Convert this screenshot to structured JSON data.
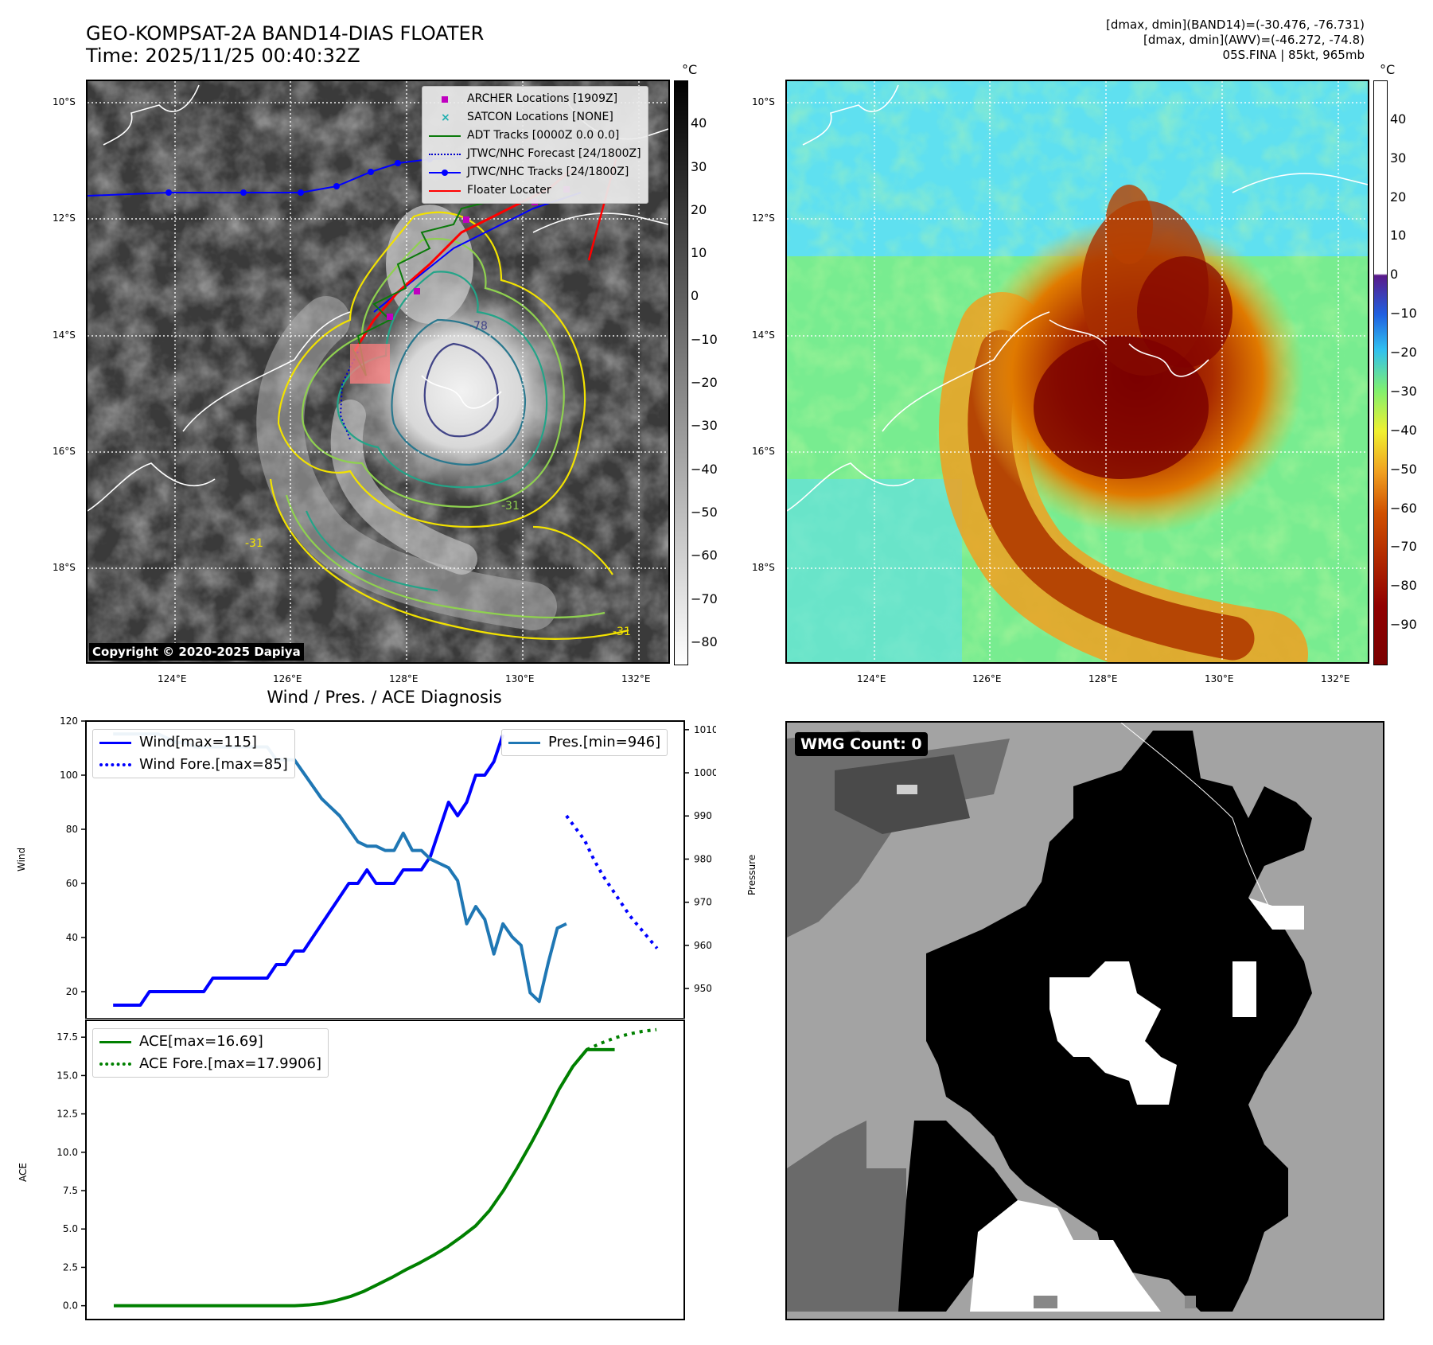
{
  "title": {
    "line1": "GEO-KOMPSAT-2A BAND14-DIAS FLOATER",
    "line2": "Time: 2025/11/25 00:40:32Z"
  },
  "info": {
    "line1": "[dmax, dmin](BAND14)=(-30.476, -76.731)",
    "line2": "[dmax, dmin](AWV)=(-46.272, -74.8)",
    "line3": "05S.FINA | 85kt, 965mb"
  },
  "map": {
    "lat_labels": [
      "10°S",
      "12°S",
      "14°S",
      "16°S",
      "18°S"
    ],
    "lon_labels": [
      "124°E",
      "126°E",
      "128°E",
      "130°E",
      "132°E"
    ],
    "copyright": "Copyright © 2020-2025 Dapiya",
    "contour_labels": [
      "-31",
      "-31",
      "-31",
      "-78"
    ]
  },
  "legend_map": {
    "items": [
      {
        "label": "ARCHER Locations [1909Z]",
        "symbol": "square",
        "color": "#c000c0"
      },
      {
        "label": "SATCON Locations [NONE]",
        "symbol": "x",
        "color": "#20b0b0"
      },
      {
        "label": "ADT Tracks [0000Z 0.0 0.0]",
        "symbol": "line",
        "color": "#0b7a0b"
      },
      {
        "label": "JTWC/NHC Forecast [24/1800Z]",
        "symbol": "dotted",
        "color": "#0000cc"
      },
      {
        "label": "JTWC/NHC Tracks [24/1800Z]",
        "symbol": "line-dot",
        "color": "#0000ff"
      },
      {
        "label": "Floater Locater",
        "symbol": "line",
        "color": "#ff0000"
      }
    ]
  },
  "colorbar_ir": {
    "unit": "°C",
    "ticks": [
      "40",
      "30",
      "20",
      "10",
      "0",
      "−10",
      "−20",
      "−30",
      "−40",
      "−50",
      "−60",
      "−70",
      "−80"
    ],
    "range": [
      -85,
      50
    ]
  },
  "colorbar_wv": {
    "unit": "°C",
    "ticks": [
      "40",
      "30",
      "20",
      "10",
      "0",
      "−10",
      "−20",
      "−30",
      "−40",
      "−50",
      "−60",
      "−70",
      "−80",
      "−90"
    ],
    "range": [
      -100,
      50
    ]
  },
  "wmg": {
    "label": "WMG Count: 0"
  },
  "diag": {
    "title": "Wind / Pres. / ACE Diagnosis",
    "wind_axis_label": "Wind",
    "pressure_axis_label": "Pressure",
    "ace_axis_label": "ACE",
    "legend_wind": "Wind[max=115]",
    "legend_wind_fore": "Wind Fore.[max=85]",
    "legend_pres": "Pres.[min=946]",
    "legend_ace": "ACE[max=16.69]",
    "legend_ace_fore": "ACE Fore.[max=17.9906]"
  },
  "chart_data": [
    {
      "type": "line",
      "title": "Wind / Pres. / ACE Diagnosis",
      "ylabel": "Wind",
      "ylim": [
        10,
        120
      ],
      "yticks": [
        20,
        40,
        60,
        80,
        100,
        120
      ],
      "y2label": "Pressure",
      "y2lim": [
        943,
        1012
      ],
      "y2ticks": [
        950,
        960,
        970,
        980,
        990,
        1000,
        1010
      ],
      "series": [
        {
          "name": "Wind[max=115]",
          "axis": "left",
          "color": "#0000ff",
          "style": "solid",
          "x": [
            0,
            1,
            2,
            3,
            4,
            5,
            6,
            7,
            8,
            9,
            10,
            11,
            12,
            13,
            14,
            15,
            16,
            17,
            18,
            19,
            20,
            21,
            22,
            23,
            24,
            25,
            26,
            27,
            28,
            29,
            30,
            31,
            32,
            33,
            34,
            35,
            36,
            37,
            38,
            39,
            40,
            41,
            42,
            43
          ],
          "values": [
            15,
            15,
            15,
            15,
            20,
            20,
            20,
            20,
            20,
            20,
            20,
            25,
            25,
            25,
            25,
            25,
            25,
            25,
            30,
            30,
            35,
            35,
            40,
            45,
            50,
            55,
            60,
            60,
            65,
            60,
            60,
            60,
            65,
            65,
            65,
            70,
            80,
            90,
            85,
            90,
            100,
            100,
            105,
            115
          ]
        },
        {
          "name": "Wind Fore.[max=85]",
          "axis": "left",
          "color": "#0000ff",
          "style": "dotted",
          "x": [
            50,
            52,
            53,
            54,
            55,
            56,
            57,
            58,
            59,
            60
          ],
          "values": [
            85,
            76,
            69,
            63,
            58,
            53,
            48,
            44,
            40,
            36
          ]
        },
        {
          "name": "Pres.[min=946]",
          "axis": "right",
          "color": "#1f77b4",
          "style": "solid",
          "x": [
            0,
            1,
            2,
            3,
            4,
            5,
            6,
            7,
            8,
            9,
            10,
            11,
            12,
            13,
            14,
            15,
            16,
            17,
            18,
            19,
            20,
            21,
            22,
            23,
            24,
            25,
            26,
            27,
            28,
            29,
            30,
            31,
            32,
            33,
            34,
            35,
            36,
            37,
            38,
            39,
            40,
            41,
            42,
            43,
            44,
            45,
            46,
            47,
            48,
            49,
            50
          ],
          "values": [
            1009,
            1009,
            1009,
            1009,
            1009,
            1009,
            1008,
            1007,
            1007,
            1006,
            1006,
            1006,
            1006,
            1006,
            1006,
            1006,
            1006,
            1006,
            1003,
            1003,
            1003,
            1000,
            997,
            994,
            992,
            990,
            987,
            984,
            983,
            983,
            982,
            982,
            986,
            982,
            982,
            980,
            979,
            978,
            975,
            965,
            969,
            966,
            958,
            965,
            962,
            960,
            949,
            947,
            956,
            964,
            965
          ]
        }
      ]
    },
    {
      "type": "line",
      "ylabel": "ACE",
      "ylim": [
        -0.9,
        18.6
      ],
      "yticks": [
        0.0,
        2.5,
        5.0,
        7.5,
        10.0,
        12.5,
        15.0,
        17.5
      ],
      "series": [
        {
          "name": "ACE[max=16.69]",
          "color": "#008000",
          "style": "solid",
          "x": [
            0,
            5,
            10,
            15,
            20,
            24,
            26,
            28,
            30,
            32,
            34,
            36,
            38,
            40,
            42,
            44,
            46,
            48,
            50,
            52,
            54,
            56,
            58,
            60,
            62,
            64,
            66,
            68,
            70,
            72
          ],
          "values": [
            0,
            0,
            0,
            0,
            0,
            0,
            0,
            0.05,
            0.15,
            0.35,
            0.6,
            0.95,
            1.4,
            1.85,
            2.35,
            2.8,
            3.3,
            3.85,
            4.5,
            5.2,
            6.2,
            7.5,
            9.0,
            10.6,
            12.3,
            14.1,
            15.6,
            16.69,
            16.69,
            16.69
          ]
        },
        {
          "name": "ACE Fore.[max=17.9906]",
          "color": "#008000",
          "style": "dotted",
          "x": [
            68,
            70,
            72,
            74,
            76,
            78
          ],
          "values": [
            16.69,
            17.1,
            17.45,
            17.7,
            17.88,
            17.99
          ]
        }
      ]
    }
  ]
}
